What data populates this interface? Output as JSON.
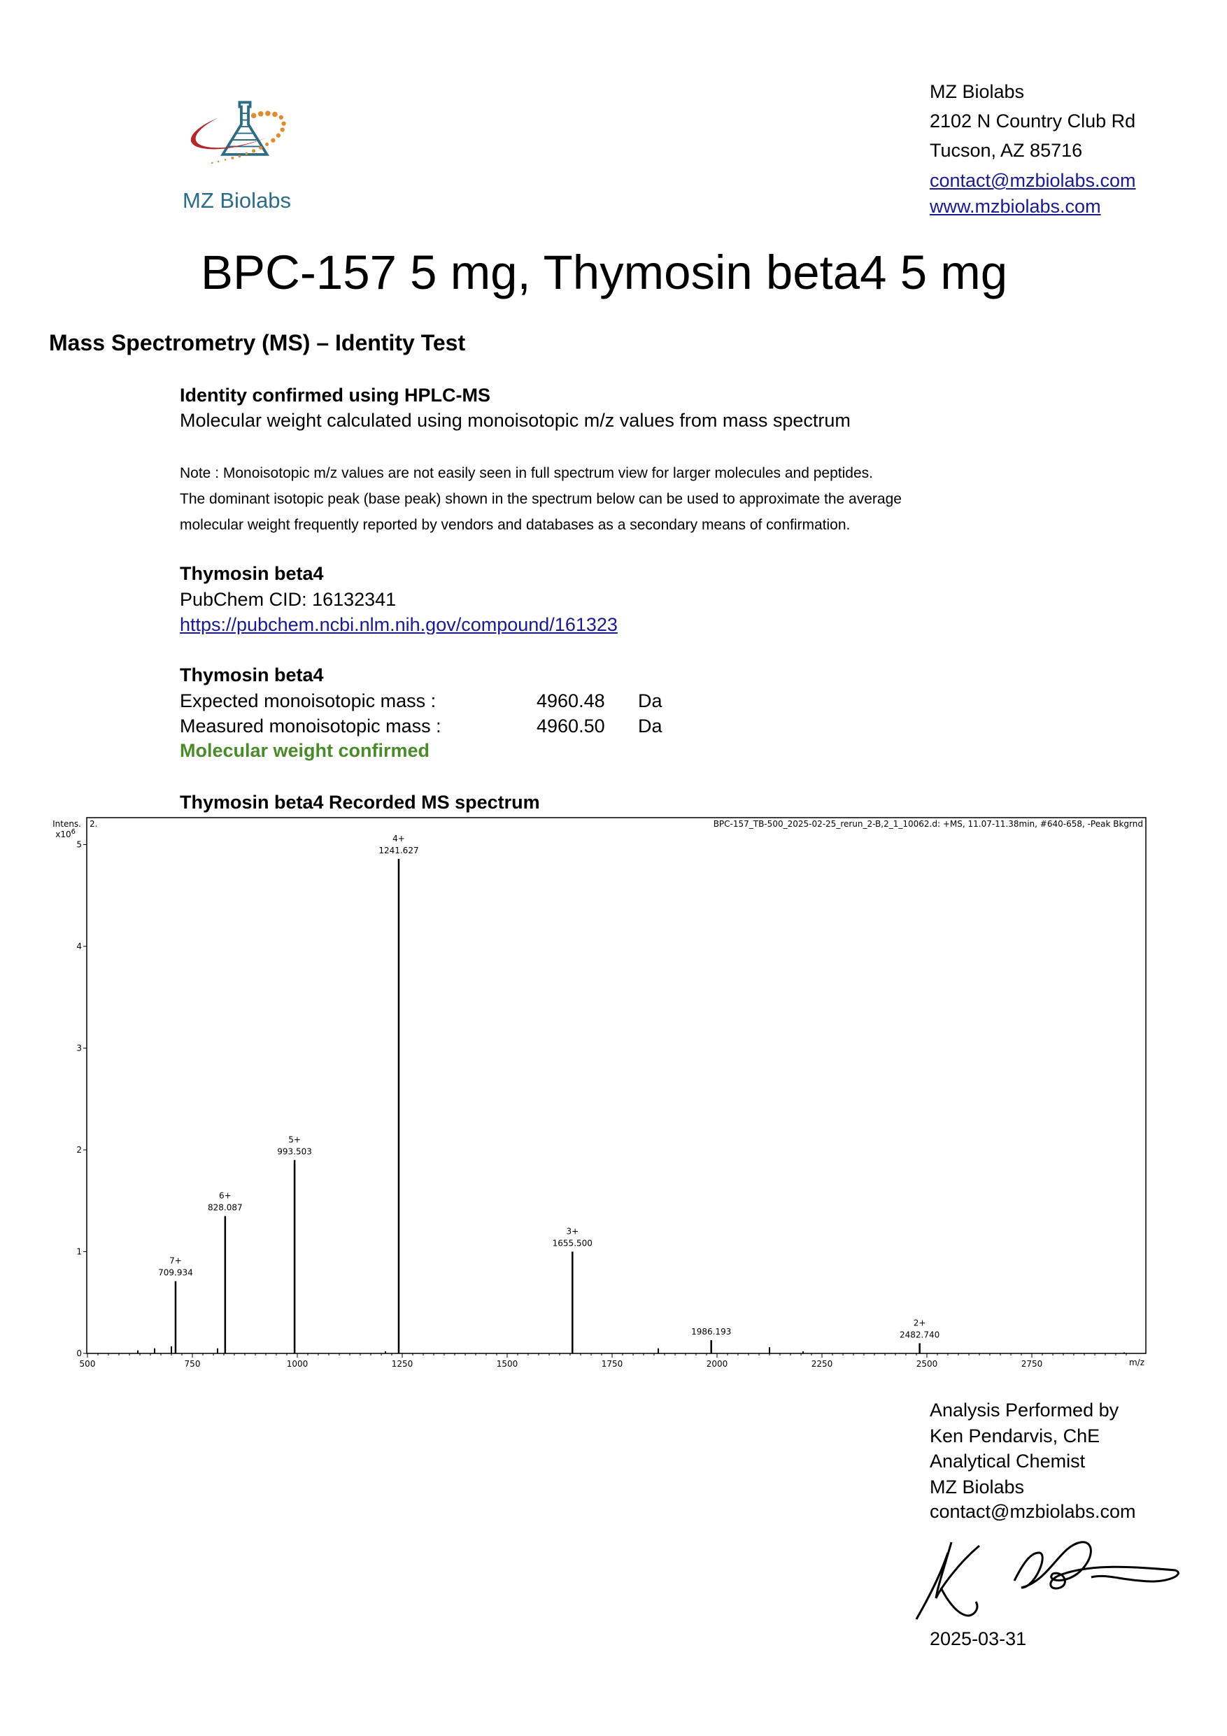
{
  "company": {
    "logo_text": "MZ Biolabs",
    "name": "MZ Biolabs",
    "street": "2102 N Country Club Rd",
    "city": "Tucson, AZ 85716",
    "email": "contact@mzbiolabs.com",
    "website": "www.mzbiolabs.com"
  },
  "title": "BPC-157  5 mg,  Thymosin beta4  5 mg",
  "section_heading": "Mass Spectrometry (MS) – Identity Test",
  "identity": {
    "heading": "Identity confirmed using HPLC-MS",
    "subtext": "Molecular weight calculated using monoisotopic m/z values from mass spectrum"
  },
  "note_lines": [
    "Note : Monoisotopic m/z values are not easily seen in full spectrum view for larger molecules and peptides.",
    "The dominant isotopic peak (base peak) shown in the spectrum below can be used to approximate the average",
    "molecular weight frequently reported by vendors and databases as a secondary means of confirmation."
  ],
  "compound": {
    "name": "Thymosin beta4",
    "pubchem": "PubChem CID: 16132341",
    "link": "https://pubchem.ncbi.nlm.nih.gov/compound/161323"
  },
  "mass": {
    "name": "Thymosin beta4",
    "expected_label": "Expected monoisotopic mass :",
    "expected_value": "4960.48",
    "measured_label": "Measured monoisotopic mass :",
    "measured_value": "4960.50",
    "unit": "Da",
    "result": "Molecular weight confirmed",
    "result_color": "#4a8a2a"
  },
  "spectrum_title": "Thymosin beta4 Recorded MS spectrum",
  "chart_data": {
    "type": "bar",
    "header": "BPC-157_TB-500_2025-02-25_rerun_2-B,2_1_10062.d: +MS, 11.07-11.38min, #640-658, -Peak Bkgrnd",
    "panel_label": "2.",
    "ylabel": "Intens.",
    "yscale": "x10",
    "yscale_exp": "6",
    "xlabel": "m/z",
    "xlim": [
      500,
      3030
    ],
    "ylim": [
      0,
      5.2
    ],
    "xticks": [
      "500",
      "750",
      "1000",
      "1250",
      "1500",
      "1750",
      "2000",
      "2250",
      "2500",
      "2750"
    ],
    "yticks": [
      "0",
      "1",
      "2",
      "3",
      "4",
      "5"
    ],
    "peaks": [
      {
        "mz": 709.934,
        "intensity": 0.71,
        "charge": "7+",
        "label": "709.934"
      },
      {
        "mz": 828.087,
        "intensity": 1.35,
        "charge": "6+",
        "label": "828.087"
      },
      {
        "mz": 993.503,
        "intensity": 1.9,
        "charge": "5+",
        "label": "993.503"
      },
      {
        "mz": 1241.627,
        "intensity": 4.86,
        "charge": "4+",
        "label": "1241.627"
      },
      {
        "mz": 1655.5,
        "intensity": 1.0,
        "charge": "3+",
        "label": "1655.500"
      },
      {
        "mz": 1986.193,
        "intensity": 0.13,
        "charge": "",
        "label": "1986.193"
      },
      {
        "mz": 2482.74,
        "intensity": 0.1,
        "charge": "2+",
        "label": "2482.740"
      }
    ],
    "minor_peaks": [
      {
        "mz": 620,
        "intensity": 0.03
      },
      {
        "mz": 660,
        "intensity": 0.05
      },
      {
        "mz": 700,
        "intensity": 0.07
      },
      {
        "mz": 810,
        "intensity": 0.05
      },
      {
        "mz": 1210,
        "intensity": 0.02
      },
      {
        "mz": 1860,
        "intensity": 0.05
      },
      {
        "mz": 2125,
        "intensity": 0.06
      },
      {
        "mz": 2205,
        "intensity": 0.02
      },
      {
        "mz": 2970,
        "intensity": 0.01
      }
    ]
  },
  "footer": {
    "line1": "Analysis Performed by",
    "line2": "Ken Pendarvis, ChE",
    "line3": "Analytical Chemist",
    "line4": "MZ Biolabs",
    "line5": "contact@mzbiolabs.com",
    "date": "2025-03-31"
  }
}
